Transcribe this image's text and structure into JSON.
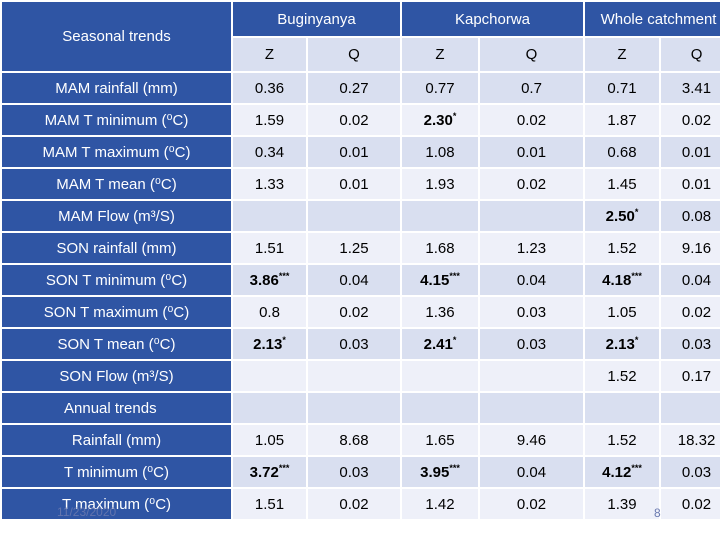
{
  "header": {
    "corner": "Seasonal trends",
    "groups": [
      "Buginyanya",
      "Kapchorwa",
      "Whole catchment"
    ],
    "subcols": [
      "Z",
      "Q",
      "Z",
      "Q",
      "Z",
      "Q"
    ]
  },
  "rows": [
    {
      "label": "MAM rainfall (mm)",
      "cells": [
        "0.36",
        "0.27",
        "0.77",
        "0.7",
        "0.71",
        "3.41"
      ]
    },
    {
      "label": "MAM T minimum (⁰C)",
      "cells": [
        "1.59",
        "0.02",
        "2.30*",
        "0.02",
        "1.87",
        "0.02"
      ]
    },
    {
      "label": "MAM T maximum (⁰C)",
      "cells": [
        "0.34",
        "0.01",
        "1.08",
        "0.01",
        "0.68",
        "0.01"
      ]
    },
    {
      "label": "MAM T mean (⁰C)",
      "cells": [
        "1.33",
        "0.01",
        "1.93",
        "0.02",
        "1.45",
        "0.01"
      ]
    },
    {
      "label": "MAM Flow (m³/S)",
      "cells": [
        "",
        "",
        "",
        "",
        "2.50*",
        "0.08"
      ]
    },
    {
      "label": "SON rainfall (mm)",
      "cells": [
        "1.51",
        "1.25",
        "1.68",
        "1.23",
        "1.52",
        "9.16"
      ]
    },
    {
      "label": "SON T minimum (⁰C)",
      "cells": [
        "3.86***",
        "0.04",
        "4.15***",
        "0.04",
        "4.18***",
        "0.04"
      ]
    },
    {
      "label": "SON T maximum (⁰C)",
      "cells": [
        "0.8",
        "0.02",
        "1.36",
        "0.03",
        "1.05",
        "0.02"
      ]
    },
    {
      "label": "SON T mean (⁰C)",
      "cells": [
        "2.13*",
        "0.03",
        "2.41*",
        "0.03",
        "2.13*",
        "0.03"
      ]
    },
    {
      "label": "SON Flow (m³/S)",
      "cells": [
        "",
        "",
        "",
        "",
        "1.52",
        "0.17"
      ]
    }
  ],
  "annual_heading": "Annual trends",
  "annual_rows": [
    {
      "label": "Rainfall (mm)",
      "cells": [
        "1.05",
        "8.68",
        "1.65",
        "9.46",
        "1.52",
        "18.32"
      ]
    },
    {
      "label": "T minimum (⁰C)",
      "cells": [
        "3.72***",
        "0.03",
        "3.95***",
        "0.04",
        "4.12***",
        "0.03"
      ]
    },
    {
      "label": "T maximum (⁰C)",
      "cells": [
        "1.51",
        "0.02",
        "1.42",
        "0.02",
        "1.39",
        "0.02"
      ]
    }
  ],
  "footer": {
    "date": "11/23/2020",
    "slide_number": "8"
  },
  "colors": {
    "header_blue": "#2f55a4",
    "row_light": "#d9dff0",
    "row_lighter": "#eef0f9"
  }
}
